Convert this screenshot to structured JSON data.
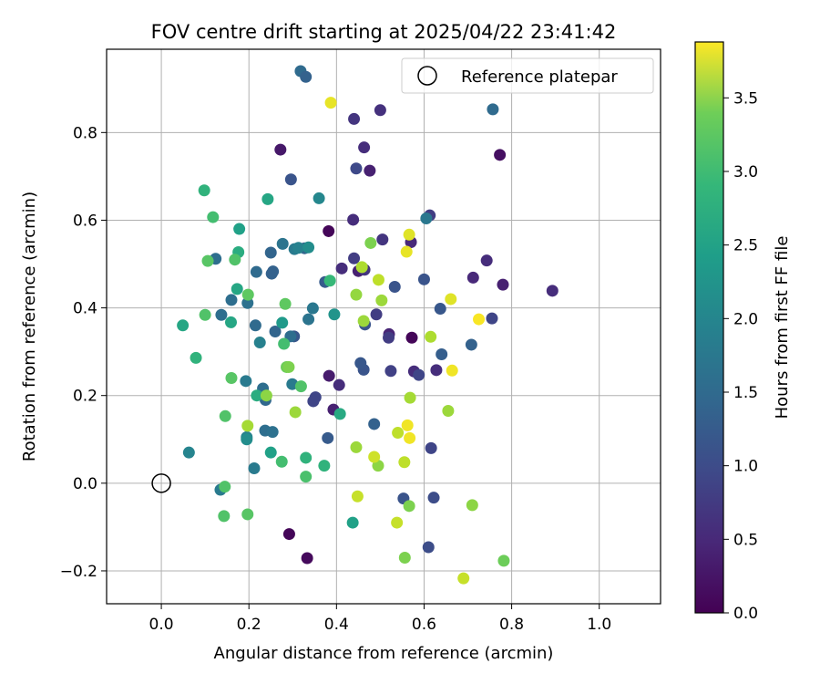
{
  "chart_data": {
    "type": "scatter",
    "title": "FOV centre drift starting at 2025/04/22 23:41:42",
    "xlabel": "Angular distance from reference (arcmin)",
    "ylabel": "Rotation from reference (arcmin)",
    "xlim": [
      -0.125,
      1.14
    ],
    "ylim": [
      -0.275,
      0.99
    ],
    "xticks": [
      0.0,
      0.2,
      0.4,
      0.6,
      0.8,
      1.0
    ],
    "xtick_labels": [
      "0.0",
      "0.2",
      "0.4",
      "0.6",
      "0.8",
      "1.0"
    ],
    "yticks": [
      -0.2,
      0.0,
      0.2,
      0.4,
      0.6,
      0.8
    ],
    "ytick_labels": [
      "−0.2",
      "0.0",
      "0.2",
      "0.4",
      "0.6",
      "0.8"
    ],
    "grid": true,
    "legend": {
      "position": "top-right",
      "entries": [
        {
          "label": "Reference platepar",
          "marker": "open-circle"
        }
      ]
    },
    "reference": {
      "x": 0.0,
      "y": 0.0
    },
    "colorbar": {
      "label": "Hours from first FF file",
      "min": 0.0,
      "max": 3.88,
      "colormap": "viridis",
      "ticks": [
        0.0,
        0.5,
        1.0,
        1.5,
        2.0,
        2.5,
        3.0,
        3.5
      ],
      "tick_labels": [
        "0.0",
        "0.5",
        "1.0",
        "1.5",
        "2.0",
        "2.5",
        "3.0",
        "3.5"
      ]
    },
    "points": [
      {
        "x": 0.292,
        "y": -0.116,
        "c": 0.05
      },
      {
        "x": 0.333,
        "y": -0.171,
        "c": 0.1
      },
      {
        "x": 0.382,
        "y": 0.575,
        "c": 0.05
      },
      {
        "x": 0.572,
        "y": 0.332,
        "c": 0.05
      },
      {
        "x": 0.773,
        "y": 0.749,
        "c": 0.15
      },
      {
        "x": 0.272,
        "y": 0.761,
        "c": 0.25
      },
      {
        "x": 0.383,
        "y": 0.245,
        "c": 0.3
      },
      {
        "x": 0.393,
        "y": 0.168,
        "c": 0.35
      },
      {
        "x": 0.45,
        "y": 0.484,
        "c": 0.35
      },
      {
        "x": 0.476,
        "y": 0.713,
        "c": 0.35
      },
      {
        "x": 0.52,
        "y": 0.34,
        "c": 0.4
      },
      {
        "x": 0.406,
        "y": 0.224,
        "c": 0.5
      },
      {
        "x": 0.412,
        "y": 0.49,
        "c": 0.5
      },
      {
        "x": 0.438,
        "y": 0.601,
        "c": 0.5
      },
      {
        "x": 0.463,
        "y": 0.766,
        "c": 0.5
      },
      {
        "x": 0.5,
        "y": 0.851,
        "c": 0.55
      },
      {
        "x": 0.44,
        "y": 0.831,
        "c": 0.6
      },
      {
        "x": 0.464,
        "y": 0.487,
        "c": 0.6
      },
      {
        "x": 0.577,
        "y": 0.255,
        "c": 0.5
      },
      {
        "x": 0.57,
        "y": 0.55,
        "c": 0.45
      },
      {
        "x": 0.628,
        "y": 0.258,
        "c": 0.5
      },
      {
        "x": 0.712,
        "y": 0.469,
        "c": 0.45
      },
      {
        "x": 0.743,
        "y": 0.508,
        "c": 0.5
      },
      {
        "x": 0.78,
        "y": 0.453,
        "c": 0.35
      },
      {
        "x": 0.893,
        "y": 0.439,
        "c": 0.5
      },
      {
        "x": 0.505,
        "y": 0.556,
        "c": 0.6
      },
      {
        "x": 0.352,
        "y": 0.196,
        "c": 0.8
      },
      {
        "x": 0.347,
        "y": 0.187,
        "c": 0.8
      },
      {
        "x": 0.44,
        "y": 0.513,
        "c": 0.7
      },
      {
        "x": 0.491,
        "y": 0.385,
        "c": 0.7
      },
      {
        "x": 0.519,
        "y": 0.332,
        "c": 0.7
      },
      {
        "x": 0.524,
        "y": 0.256,
        "c": 0.75
      },
      {
        "x": 0.588,
        "y": 0.247,
        "c": 0.8
      },
      {
        "x": 0.613,
        "y": 0.611,
        "c": 0.7
      },
      {
        "x": 0.616,
        "y": 0.08,
        "c": 0.8
      },
      {
        "x": 0.61,
        "y": -0.146,
        "c": 0.9
      },
      {
        "x": 0.622,
        "y": -0.033,
        "c": 0.9
      },
      {
        "x": 0.553,
        "y": -0.035,
        "c": 1.0
      },
      {
        "x": 0.755,
        "y": 0.376,
        "c": 0.8
      },
      {
        "x": 0.445,
        "y": 0.718,
        "c": 0.85
      },
      {
        "x": 0.296,
        "y": 0.693,
        "c": 1.0
      },
      {
        "x": 0.318,
        "y": 0.94,
        "c": 1.35
      },
      {
        "x": 0.33,
        "y": 0.927,
        "c": 1.2
      },
      {
        "x": 0.462,
        "y": 0.259,
        "c": 1.0
      },
      {
        "x": 0.455,
        "y": 0.274,
        "c": 1.05
      },
      {
        "x": 0.465,
        "y": 0.362,
        "c": 1.0
      },
      {
        "x": 0.533,
        "y": 0.448,
        "c": 1.0
      },
      {
        "x": 0.6,
        "y": 0.465,
        "c": 1.0
      },
      {
        "x": 0.637,
        "y": 0.398,
        "c": 1.05
      },
      {
        "x": 0.64,
        "y": 0.294,
        "c": 1.15
      },
      {
        "x": 0.708,
        "y": 0.316,
        "c": 1.2
      },
      {
        "x": 0.757,
        "y": 0.853,
        "c": 1.35
      },
      {
        "x": 0.605,
        "y": 0.604,
        "c": 1.55
      },
      {
        "x": 0.486,
        "y": 0.135,
        "c": 1.2
      },
      {
        "x": 0.38,
        "y": 0.103,
        "c": 1.1
      },
      {
        "x": 0.374,
        "y": 0.459,
        "c": 1.1
      },
      {
        "x": 0.303,
        "y": 0.335,
        "c": 1.05
      },
      {
        "x": 0.327,
        "y": 0.536,
        "c": 1.25
      },
      {
        "x": 0.25,
        "y": 0.526,
        "c": 1.25
      },
      {
        "x": 0.252,
        "y": 0.478,
        "c": 1.2
      },
      {
        "x": 0.255,
        "y": 0.483,
        "c": 1.2
      },
      {
        "x": 0.26,
        "y": 0.346,
        "c": 1.25
      },
      {
        "x": 0.238,
        "y": 0.19,
        "c": 1.3
      },
      {
        "x": 0.237,
        "y": 0.12,
        "c": 1.4
      },
      {
        "x": 0.254,
        "y": 0.117,
        "c": 1.45
      },
      {
        "x": 0.232,
        "y": 0.216,
        "c": 1.4
      },
      {
        "x": 0.215,
        "y": 0.36,
        "c": 1.35
      },
      {
        "x": 0.217,
        "y": 0.482,
        "c": 1.35
      },
      {
        "x": 0.16,
        "y": 0.418,
        "c": 1.4
      },
      {
        "x": 0.124,
        "y": 0.512,
        "c": 1.4
      },
      {
        "x": 0.137,
        "y": 0.384,
        "c": 1.4
      },
      {
        "x": 0.197,
        "y": 0.411,
        "c": 1.45
      },
      {
        "x": 0.277,
        "y": 0.546,
        "c": 1.5
      },
      {
        "x": 0.304,
        "y": 0.534,
        "c": 1.6
      },
      {
        "x": 0.313,
        "y": 0.537,
        "c": 1.7
      },
      {
        "x": 0.336,
        "y": 0.374,
        "c": 1.5
      },
      {
        "x": 0.346,
        "y": 0.399,
        "c": 1.55
      },
      {
        "x": 0.299,
        "y": 0.226,
        "c": 1.6
      },
      {
        "x": 0.295,
        "y": 0.335,
        "c": 1.4
      },
      {
        "x": 0.225,
        "y": 0.321,
        "c": 1.7
      },
      {
        "x": 0.193,
        "y": 0.233,
        "c": 1.6
      },
      {
        "x": 0.135,
        "y": -0.015,
        "c": 1.6
      },
      {
        "x": 0.212,
        "y": 0.034,
        "c": 1.6
      },
      {
        "x": 0.195,
        "y": 0.105,
        "c": 1.7
      },
      {
        "x": 0.195,
        "y": 0.1,
        "c": 1.9
      },
      {
        "x": 0.063,
        "y": 0.07,
        "c": 1.75
      },
      {
        "x": 0.36,
        "y": 0.65,
        "c": 1.8
      },
      {
        "x": 0.437,
        "y": -0.09,
        "c": 2.2
      },
      {
        "x": 0.25,
        "y": 0.07,
        "c": 2.2
      },
      {
        "x": 0.276,
        "y": 0.366,
        "c": 2.1
      },
      {
        "x": 0.336,
        "y": 0.538,
        "c": 1.9
      },
      {
        "x": 0.395,
        "y": 0.385,
        "c": 2.0
      },
      {
        "x": 0.408,
        "y": 0.158,
        "c": 2.35
      },
      {
        "x": 0.372,
        "y": 0.04,
        "c": 2.5
      },
      {
        "x": 0.33,
        "y": 0.058,
        "c": 2.5
      },
      {
        "x": 0.243,
        "y": 0.648,
        "c": 2.3
      },
      {
        "x": 0.178,
        "y": 0.58,
        "c": 2.2
      },
      {
        "x": 0.176,
        "y": 0.527,
        "c": 2.4
      },
      {
        "x": 0.173,
        "y": 0.443,
        "c": 2.3
      },
      {
        "x": 0.218,
        "y": 0.2,
        "c": 2.4
      },
      {
        "x": 0.098,
        "y": 0.668,
        "c": 2.5
      },
      {
        "x": 0.049,
        "y": 0.36,
        "c": 2.3
      },
      {
        "x": 0.079,
        "y": 0.286,
        "c": 2.5
      },
      {
        "x": 0.159,
        "y": 0.367,
        "c": 2.3
      },
      {
        "x": 0.118,
        "y": 0.607,
        "c": 2.7
      },
      {
        "x": 0.106,
        "y": 0.507,
        "c": 2.85
      },
      {
        "x": 0.168,
        "y": 0.51,
        "c": 2.8
      },
      {
        "x": 0.198,
        "y": 0.43,
        "c": 2.9
      },
      {
        "x": 0.1,
        "y": 0.384,
        "c": 2.8
      },
      {
        "x": 0.16,
        "y": 0.24,
        "c": 2.85
      },
      {
        "x": 0.146,
        "y": 0.153,
        "c": 2.8
      },
      {
        "x": 0.28,
        "y": 0.318,
        "c": 2.7
      },
      {
        "x": 0.283,
        "y": 0.409,
        "c": 2.9
      },
      {
        "x": 0.385,
        "y": 0.462,
        "c": 2.6
      },
      {
        "x": 0.319,
        "y": 0.221,
        "c": 2.8
      },
      {
        "x": 0.145,
        "y": -0.008,
        "c": 2.8
      },
      {
        "x": 0.143,
        "y": -0.075,
        "c": 2.8
      },
      {
        "x": 0.197,
        "y": -0.071,
        "c": 2.85
      },
      {
        "x": 0.275,
        "y": 0.049,
        "c": 2.7
      },
      {
        "x": 0.33,
        "y": 0.015,
        "c": 2.75
      },
      {
        "x": 0.286,
        "y": 0.265,
        "c": 3.0
      },
      {
        "x": 0.291,
        "y": 0.265,
        "c": 3.1
      },
      {
        "x": 0.24,
        "y": 0.2,
        "c": 3.2
      },
      {
        "x": 0.197,
        "y": 0.131,
        "c": 3.35
      },
      {
        "x": 0.306,
        "y": 0.162,
        "c": 3.3
      },
      {
        "x": 0.445,
        "y": 0.082,
        "c": 3.3
      },
      {
        "x": 0.495,
        "y": 0.04,
        "c": 3.2
      },
      {
        "x": 0.448,
        "y": -0.03,
        "c": 3.55
      },
      {
        "x": 0.556,
        "y": -0.17,
        "c": 3.1
      },
      {
        "x": 0.566,
        "y": -0.052,
        "c": 3.1
      },
      {
        "x": 0.782,
        "y": -0.177,
        "c": 3.0
      },
      {
        "x": 0.71,
        "y": -0.05,
        "c": 3.2
      },
      {
        "x": 0.69,
        "y": -0.217,
        "c": 3.55
      },
      {
        "x": 0.655,
        "y": 0.165,
        "c": 3.3
      },
      {
        "x": 0.568,
        "y": 0.195,
        "c": 3.35
      },
      {
        "x": 0.555,
        "y": 0.048,
        "c": 3.5
      },
      {
        "x": 0.538,
        "y": -0.09,
        "c": 3.55
      },
      {
        "x": 0.54,
        "y": 0.115,
        "c": 3.5
      },
      {
        "x": 0.562,
        "y": 0.132,
        "c": 3.8
      },
      {
        "x": 0.567,
        "y": 0.103,
        "c": 3.8
      },
      {
        "x": 0.486,
        "y": 0.06,
        "c": 3.6
      },
      {
        "x": 0.445,
        "y": 0.43,
        "c": 3.25
      },
      {
        "x": 0.462,
        "y": 0.37,
        "c": 3.3
      },
      {
        "x": 0.478,
        "y": 0.548,
        "c": 3.1
      },
      {
        "x": 0.458,
        "y": 0.493,
        "c": 3.4
      },
      {
        "x": 0.496,
        "y": 0.464,
        "c": 3.5
      },
      {
        "x": 0.503,
        "y": 0.417,
        "c": 3.3
      },
      {
        "x": 0.56,
        "y": 0.528,
        "c": 3.75
      },
      {
        "x": 0.566,
        "y": 0.567,
        "c": 3.7
      },
      {
        "x": 0.615,
        "y": 0.334,
        "c": 3.4
      },
      {
        "x": 0.661,
        "y": 0.42,
        "c": 3.7
      },
      {
        "x": 0.664,
        "y": 0.257,
        "c": 3.8
      },
      {
        "x": 0.725,
        "y": 0.374,
        "c": 3.85
      },
      {
        "x": 0.387,
        "y": 0.868,
        "c": 3.75
      }
    ]
  }
}
